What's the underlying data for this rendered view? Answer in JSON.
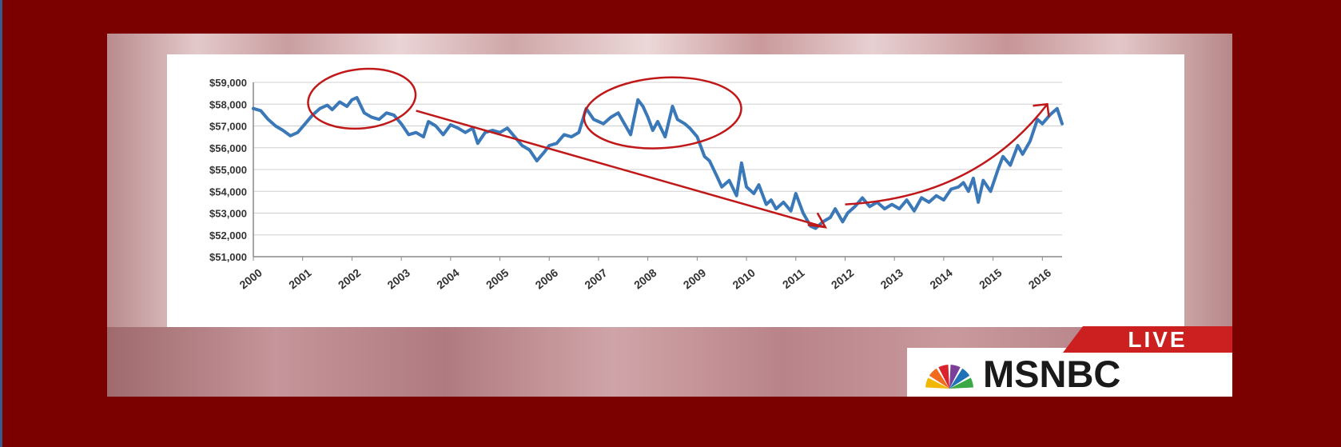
{
  "chart_data": {
    "type": "line",
    "ylim": [
      51000,
      59000
    ],
    "yticks": [
      "$51,000",
      "$52,000",
      "$53,000",
      "$54,000",
      "$55,000",
      "$56,000",
      "$57,000",
      "$58,000",
      "$59,000"
    ],
    "xticks": [
      "2000",
      "2001",
      "2002",
      "2003",
      "2004",
      "2005",
      "2006",
      "2007",
      "2008",
      "2009",
      "2010",
      "2011",
      "2012",
      "2013",
      "2014",
      "2015",
      "2016"
    ],
    "xlim": [
      2000,
      2016.4
    ],
    "grid": true,
    "series": [
      {
        "color": "#3a78b8",
        "x": [
          2000.0,
          2000.15,
          2000.3,
          2000.45,
          2000.6,
          2000.75,
          2000.9,
          2001.05,
          2001.2,
          2001.35,
          2001.5,
          2001.6,
          2001.75,
          2001.9,
          2002.0,
          2002.1,
          2002.25,
          2002.4,
          2002.55,
          2002.7,
          2002.85,
          2003.0,
          2003.15,
          2003.3,
          2003.45,
          2003.55,
          2003.7,
          2003.85,
          2004.0,
          2004.15,
          2004.3,
          2004.45,
          2004.55,
          2004.7,
          2004.85,
          2005.0,
          2005.15,
          2005.3,
          2005.45,
          2005.6,
          2005.75,
          2005.9,
          2006.0,
          2006.15,
          2006.3,
          2006.45,
          2006.6,
          2006.75,
          2006.9,
          2007.0,
          2007.1,
          2007.25,
          2007.4,
          2007.55,
          2007.65,
          2007.8,
          2007.9,
          2008.0,
          2008.1,
          2008.2,
          2008.35,
          2008.5,
          2008.6,
          2008.75,
          2008.85,
          2009.0,
          2009.15,
          2009.25,
          2009.4,
          2009.5,
          2009.65,
          2009.8,
          2009.9,
          2010.0,
          2010.15,
          2010.25,
          2010.4,
          2010.5,
          2010.6,
          2010.75,
          2010.9,
          2011.0,
          2011.15,
          2011.3,
          2011.4,
          2011.55,
          2011.7,
          2011.8,
          2011.95,
          2012.05,
          2012.2,
          2012.35,
          2012.5,
          2012.65,
          2012.8,
          2012.95,
          2013.1,
          2013.25,
          2013.4,
          2013.55,
          2013.7,
          2013.85,
          2014.0,
          2014.15,
          2014.3,
          2014.4,
          2014.5,
          2014.6,
          2014.7,
          2014.8,
          2014.95,
          2015.1,
          2015.2,
          2015.35,
          2015.5,
          2015.6,
          2015.75,
          2015.9,
          2016.0,
          2016.15,
          2016.3,
          2016.4
        ],
        "values": [
          57800,
          57700,
          57300,
          57000,
          56800,
          56550,
          56700,
          57100,
          57500,
          57800,
          57950,
          57750,
          58100,
          57900,
          58200,
          58300,
          57600,
          57400,
          57300,
          57600,
          57500,
          57100,
          56600,
          56700,
          56500,
          57200,
          57000,
          56600,
          57050,
          56900,
          56700,
          56900,
          56200,
          56700,
          56800,
          56700,
          56900,
          56500,
          56100,
          55900,
          55400,
          55800,
          56100,
          56200,
          56600,
          56500,
          56700,
          57800,
          57300,
          57200,
          57100,
          57400,
          57600,
          57000,
          56600,
          58200,
          57900,
          57400,
          56800,
          57200,
          56500,
          57900,
          57300,
          57100,
          56900,
          56500,
          55600,
          55400,
          54700,
          54200,
          54500,
          53800,
          55300,
          54200,
          53900,
          54300,
          53400,
          53600,
          53200,
          53500,
          53100,
          53900,
          53000,
          52400,
          52300,
          52600,
          52800,
          53200,
          52600,
          53000,
          53300,
          53700,
          53300,
          53500,
          53200,
          53400,
          53200,
          53600,
          53100,
          53700,
          53500,
          53800,
          53600,
          54100,
          54200,
          54400,
          54000,
          54600,
          53500,
          54500,
          54000,
          55000,
          55600,
          55200,
          56100,
          55700,
          56300,
          57300,
          57100,
          57500,
          57800,
          57100
        ]
      }
    ],
    "annotations": [
      {
        "kind": "circle",
        "around": [
          "2001.3",
          "2003.1"
        ]
      },
      {
        "kind": "circle",
        "around": [
          "2006.8",
          "2009.8"
        ]
      },
      {
        "kind": "arrow",
        "from": "2003.3",
        "to": "2011.6"
      },
      {
        "kind": "arrow",
        "from": "2012.0",
        "to": "2016.1"
      }
    ]
  },
  "branding": {
    "live_label": "LIVE",
    "network_label": "MSNBC",
    "peacock_colors": [
      "#f2b705",
      "#f26b1d",
      "#d9232d",
      "#7a3f98",
      "#1f72b8",
      "#3aa845"
    ]
  },
  "colors": {
    "background": "#7b0000",
    "line": "#3a78b8",
    "annotation": "#c01818"
  }
}
